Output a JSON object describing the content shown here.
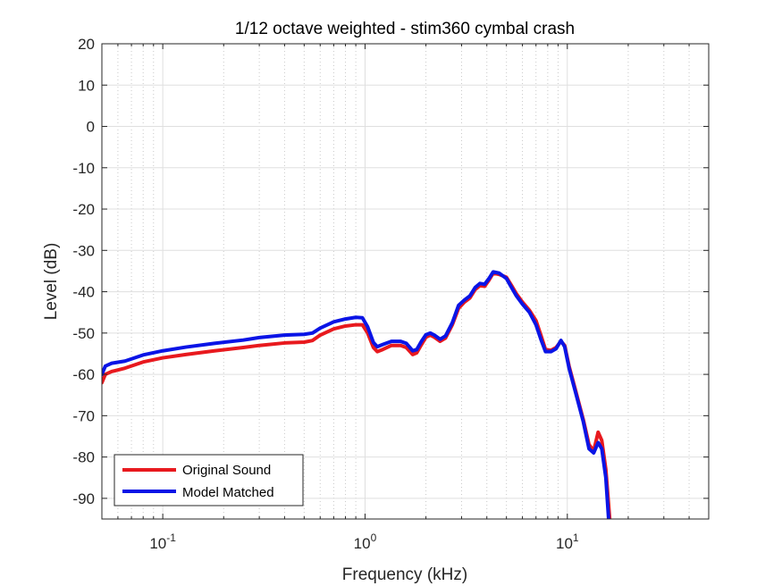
{
  "chart_data": {
    "type": "line",
    "title": "1/12 octave weighted - stim360 cymbal crash",
    "xlabel": "Frequency (kHz)",
    "ylabel": "Level (dB)",
    "xscale": "log",
    "xlim": [
      0.05,
      50
    ],
    "ylim": [
      -95,
      20
    ],
    "x_ticks": [
      {
        "base": "10",
        "exp": "-1",
        "value": 0.1
      },
      {
        "base": "10",
        "exp": "0",
        "value": 1
      },
      {
        "base": "10",
        "exp": "1",
        "value": 10
      }
    ],
    "y_ticks": [
      "20",
      "10",
      "0",
      "-10",
      "-20",
      "-30",
      "-40",
      "-50",
      "-60",
      "-70",
      "-80",
      "-90"
    ],
    "grid": true,
    "legend_position": "bottom-left",
    "series": [
      {
        "name": "Original Sound",
        "color": "#e8191e",
        "points": [
          [
            0.05,
            -62
          ],
          [
            0.052,
            -60
          ],
          [
            0.056,
            -59.3
          ],
          [
            0.065,
            -58.5
          ],
          [
            0.08,
            -57
          ],
          [
            0.1,
            -56
          ],
          [
            0.13,
            -55.2
          ],
          [
            0.18,
            -54.3
          ],
          [
            0.25,
            -53.5
          ],
          [
            0.3,
            -53
          ],
          [
            0.4,
            -52.4
          ],
          [
            0.5,
            -52.2
          ],
          [
            0.55,
            -51.8
          ],
          [
            0.6,
            -50.5
          ],
          [
            0.7,
            -49
          ],
          [
            0.8,
            -48.3
          ],
          [
            0.9,
            -48
          ],
          [
            0.97,
            -48
          ],
          [
            1.03,
            -50
          ],
          [
            1.1,
            -53.5
          ],
          [
            1.15,
            -54.5
          ],
          [
            1.22,
            -54
          ],
          [
            1.35,
            -53
          ],
          [
            1.5,
            -53
          ],
          [
            1.6,
            -53.5
          ],
          [
            1.72,
            -55.2
          ],
          [
            1.8,
            -54.8
          ],
          [
            1.9,
            -52.8
          ],
          [
            2.0,
            -51
          ],
          [
            2.1,
            -50.5
          ],
          [
            2.2,
            -51
          ],
          [
            2.35,
            -52
          ],
          [
            2.5,
            -51.2
          ],
          [
            2.7,
            -48
          ],
          [
            2.9,
            -44
          ],
          [
            3.1,
            -42.5
          ],
          [
            3.3,
            -41.5
          ],
          [
            3.5,
            -39.5
          ],
          [
            3.7,
            -38.5
          ],
          [
            3.9,
            -38.7
          ],
          [
            4.1,
            -37.2
          ],
          [
            4.3,
            -35.5
          ],
          [
            4.6,
            -35.8
          ],
          [
            5.0,
            -36.5
          ],
          [
            5.3,
            -38.5
          ],
          [
            5.6,
            -40.5
          ],
          [
            6.0,
            -42.5
          ],
          [
            6.5,
            -44.5
          ],
          [
            7.0,
            -47
          ],
          [
            7.4,
            -50.5
          ],
          [
            7.8,
            -54
          ],
          [
            8.3,
            -54.2
          ],
          [
            8.8,
            -53.5
          ],
          [
            9.3,
            -52
          ],
          [
            9.7,
            -53
          ],
          [
            10.2,
            -58
          ],
          [
            11.0,
            -64
          ],
          [
            12.0,
            -71
          ],
          [
            12.8,
            -77
          ],
          [
            13.5,
            -78.5
          ],
          [
            14.2,
            -74
          ],
          [
            14.8,
            -76
          ],
          [
            15.5,
            -83
          ],
          [
            16.2,
            -95
          ]
        ]
      },
      {
        "name": "Model Matched",
        "color": "#0a14e6",
        "points": [
          [
            0.05,
            -60
          ],
          [
            0.052,
            -58
          ],
          [
            0.056,
            -57.3
          ],
          [
            0.065,
            -56.8
          ],
          [
            0.08,
            -55.3
          ],
          [
            0.1,
            -54.3
          ],
          [
            0.13,
            -53.4
          ],
          [
            0.18,
            -52.5
          ],
          [
            0.25,
            -51.7
          ],
          [
            0.3,
            -51.1
          ],
          [
            0.4,
            -50.5
          ],
          [
            0.5,
            -50.3
          ],
          [
            0.55,
            -50
          ],
          [
            0.6,
            -48.8
          ],
          [
            0.7,
            -47.3
          ],
          [
            0.8,
            -46.6
          ],
          [
            0.9,
            -46.2
          ],
          [
            0.97,
            -46.3
          ],
          [
            1.03,
            -48.5
          ],
          [
            1.1,
            -52.3
          ],
          [
            1.15,
            -53.3
          ],
          [
            1.22,
            -52.8
          ],
          [
            1.35,
            -52
          ],
          [
            1.5,
            -52
          ],
          [
            1.6,
            -52.5
          ],
          [
            1.72,
            -54.3
          ],
          [
            1.8,
            -54
          ],
          [
            1.9,
            -52
          ],
          [
            2.0,
            -50.4
          ],
          [
            2.1,
            -50
          ],
          [
            2.2,
            -50.5
          ],
          [
            2.35,
            -51.5
          ],
          [
            2.5,
            -50.7
          ],
          [
            2.7,
            -47.5
          ],
          [
            2.9,
            -43.3
          ],
          [
            3.1,
            -42
          ],
          [
            3.3,
            -41
          ],
          [
            3.5,
            -39
          ],
          [
            3.7,
            -38
          ],
          [
            3.9,
            -38.2
          ],
          [
            4.1,
            -36.8
          ],
          [
            4.3,
            -35.2
          ],
          [
            4.6,
            -35.5
          ],
          [
            5.0,
            -36.8
          ],
          [
            5.3,
            -39
          ],
          [
            5.6,
            -41
          ],
          [
            6.0,
            -43
          ],
          [
            6.5,
            -45
          ],
          [
            7.0,
            -48
          ],
          [
            7.4,
            -51.5
          ],
          [
            7.8,
            -54.5
          ],
          [
            8.3,
            -54.5
          ],
          [
            8.8,
            -53.8
          ],
          [
            9.3,
            -51.8
          ],
          [
            9.7,
            -53.3
          ],
          [
            10.2,
            -58.5
          ],
          [
            11.0,
            -64.5
          ],
          [
            12.0,
            -71.5
          ],
          [
            12.8,
            -78
          ],
          [
            13.5,
            -79
          ],
          [
            14.2,
            -76.5
          ],
          [
            14.8,
            -78
          ],
          [
            15.5,
            -85
          ],
          [
            16.0,
            -95
          ]
        ]
      }
    ]
  }
}
